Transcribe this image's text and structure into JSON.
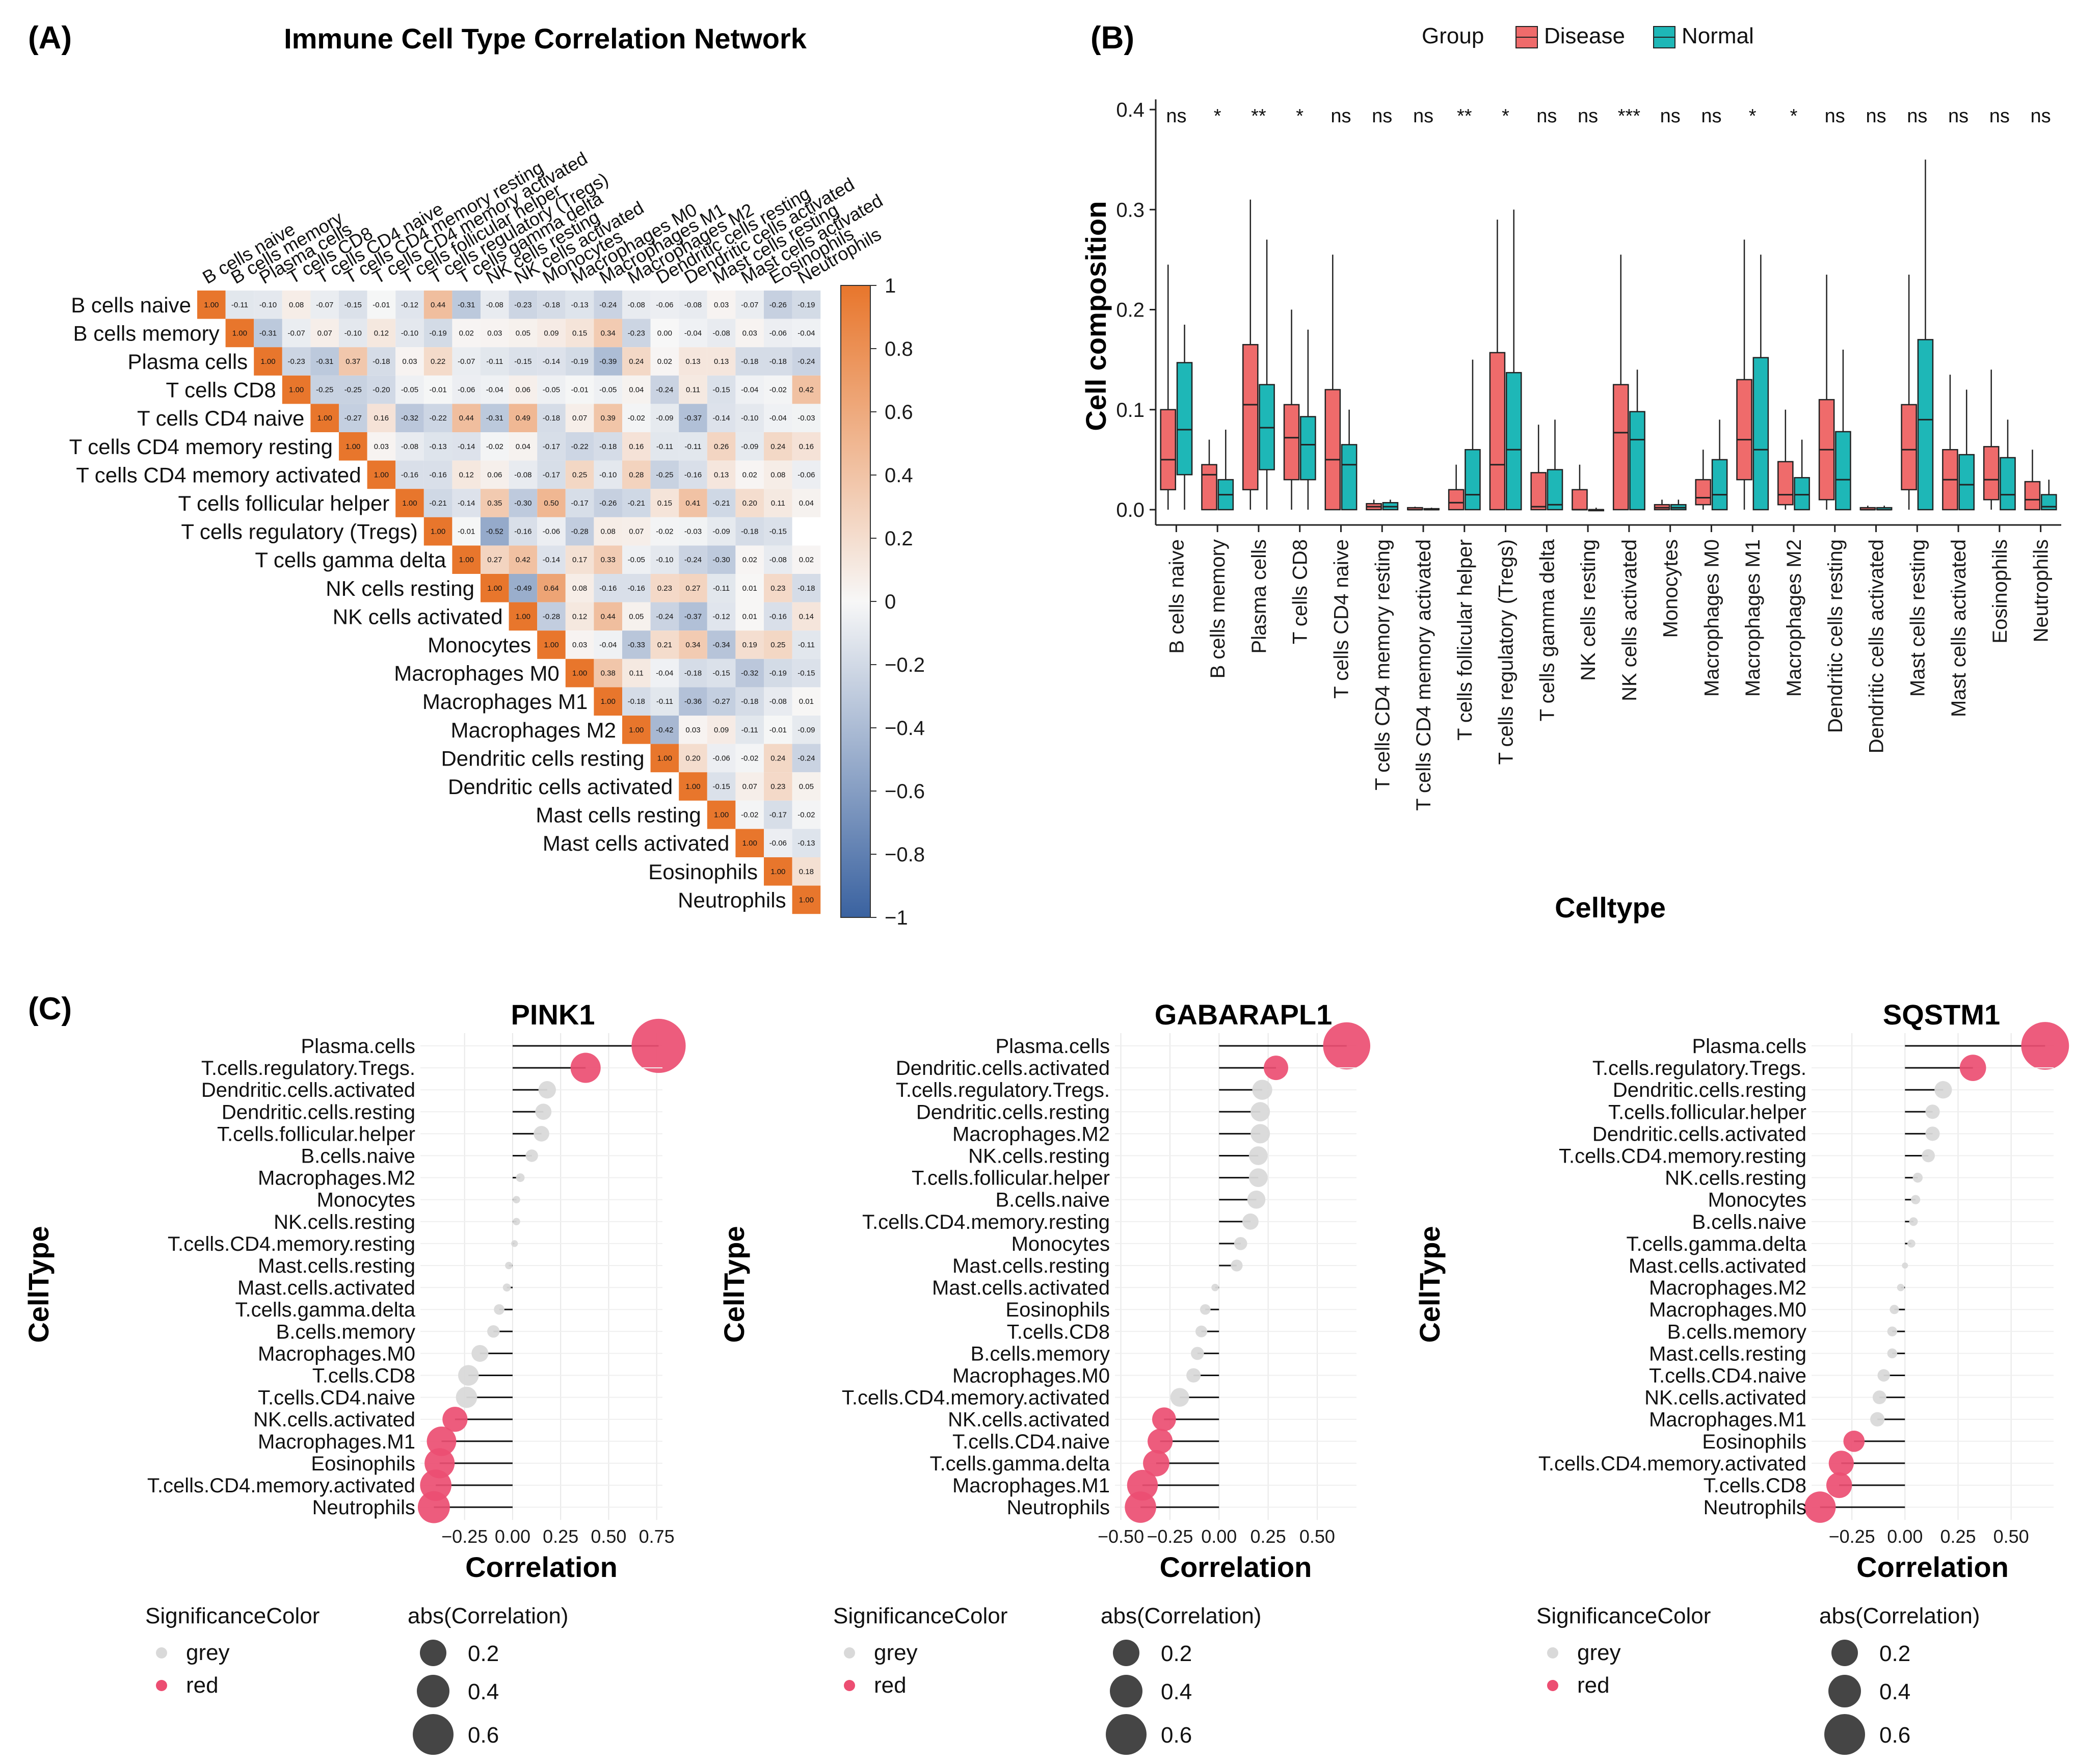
{
  "panels": {
    "a": {
      "label": "(A)",
      "title": "Immune Cell Type Correlation Network"
    },
    "b": {
      "label": "(B)"
    },
    "c": {
      "label": "(C)"
    }
  },
  "chart_data": [
    {
      "type": "heatmap",
      "title": "Immune Cell Type Correlation Network",
      "labels": [
        "B cells naive",
        "B cells memory",
        "Plasma cells",
        "T cells CD8",
        "T cells CD4 naive",
        "T cells CD4 memory resting",
        "T cells CD4 memory activated",
        "T cells follicular helper",
        "T cells regulatory (Tregs)",
        "T cells gamma delta",
        "NK cells resting",
        "NK cells activated",
        "Monocytes",
        "Macrophages M0",
        "Macrophages M1",
        "Macrophages M2",
        "Dendritic cells resting",
        "Dendritic cells activated",
        "Mast cells resting",
        "Mast cells activated",
        "Eosinophils",
        "Neutrophils"
      ],
      "values": [
        [
          1.0,
          -0.11,
          -0.1,
          0.08,
          -0.07,
          -0.15,
          -0.01,
          -0.12,
          0.44,
          -0.31,
          -0.08,
          -0.23,
          -0.18,
          -0.13,
          -0.24,
          -0.08,
          -0.06,
          -0.08,
          0.03,
          -0.07,
          -0.26,
          -0.19
        ],
        [
          1.0,
          -0.31,
          -0.07,
          0.07,
          -0.1,
          0.12,
          -0.1,
          -0.19,
          0.02,
          0.03,
          0.05,
          0.09,
          0.15,
          0.34,
          -0.23,
          0.0,
          -0.04,
          -0.08,
          0.03,
          -0.06,
          -0.04
        ],
        [
          1.0,
          -0.23,
          -0.31,
          0.37,
          -0.18,
          0.03,
          0.22,
          -0.07,
          -0.11,
          -0.15,
          -0.14,
          -0.19,
          -0.39,
          0.24,
          0.02,
          0.13,
          0.13,
          -0.18,
          -0.18,
          -0.24
        ],
        [
          1.0,
          -0.25,
          -0.25,
          -0.2,
          -0.05,
          -0.01,
          -0.06,
          -0.04,
          0.06,
          -0.05,
          -0.01,
          -0.05,
          0.04,
          -0.24,
          0.11,
          -0.15,
          -0.04,
          -0.02,
          0.42
        ],
        [
          1.0,
          -0.27,
          0.16,
          -0.32,
          -0.22,
          0.44,
          -0.31,
          0.49,
          -0.18,
          0.07,
          0.39,
          -0.02,
          -0.09,
          -0.37,
          -0.14,
          -0.1,
          -0.04,
          -0.03
        ],
        [
          1.0,
          0.03,
          -0.08,
          -0.13,
          -0.14,
          -0.02,
          0.04,
          -0.17,
          -0.22,
          -0.18,
          0.16,
          -0.11,
          -0.11,
          0.26,
          -0.09,
          0.24,
          0.16
        ],
        [
          1.0,
          -0.16,
          -0.16,
          0.12,
          0.06,
          -0.08,
          -0.17,
          0.25,
          -0.1,
          0.28,
          -0.25,
          -0.16,
          0.13,
          0.02,
          0.08,
          -0.06
        ],
        [
          1.0,
          -0.21,
          -0.14,
          0.35,
          -0.3,
          0.5,
          -0.17,
          -0.26,
          -0.21,
          0.15,
          0.41,
          -0.21,
          0.2,
          0.11,
          0.04
        ],
        [
          1.0,
          -0.01,
          -0.52,
          -0.16,
          -0.06,
          -0.28,
          0.08,
          0.07,
          -0.02,
          -0.03,
          -0.09,
          -0.18,
          -0.15
        ],
        [
          1.0,
          0.27,
          0.42,
          -0.14,
          0.17,
          0.33,
          -0.05,
          -0.1,
          -0.24,
          -0.3,
          0.02,
          -0.08,
          0.02
        ],
        [
          1.0,
          -0.49,
          0.64,
          0.08,
          -0.16,
          -0.16,
          0.23,
          0.27,
          -0.11,
          0.01,
          0.23,
          -0.18
        ],
        [
          1.0,
          -0.28,
          0.12,
          0.44,
          0.05,
          -0.24,
          -0.37,
          -0.12,
          0.01,
          -0.16,
          0.14
        ],
        [
          1.0,
          0.03,
          -0.04,
          -0.33,
          0.21,
          0.34,
          -0.34,
          0.19,
          0.25,
          -0.11
        ],
        [
          1.0,
          0.38,
          0.11,
          -0.04,
          -0.18,
          -0.15,
          -0.32,
          -0.19,
          -0.15
        ],
        [
          1.0,
          -0.18,
          -0.11,
          -0.36,
          -0.27,
          -0.18,
          -0.08,
          0.01
        ],
        [
          1.0,
          -0.42,
          0.03,
          0.09,
          -0.11,
          -0.01,
          -0.09
        ],
        [
          1.0,
          0.2,
          -0.06,
          -0.02,
          0.24,
          -0.24
        ],
        [
          1.0,
          -0.15,
          0.07,
          0.23,
          0.05
        ],
        [
          1.0,
          -0.02,
          -0.17,
          -0.02
        ],
        [
          1.0,
          -0.06,
          -0.13
        ],
        [
          1.0,
          0.18
        ],
        [
          1.0
        ]
      ],
      "colorbar": {
        "ticks": [
          "1",
          "0.8",
          "0.6",
          "0.4",
          "0.2",
          "0",
          "−0.2",
          "−0.4",
          "−0.6",
          "−0.8",
          "−1"
        ],
        "range": [
          -1,
          1
        ],
        "low_color": "#3a62a0",
        "mid_color": "#f7f7f7",
        "high_color": "#e8762c"
      }
    },
    {
      "type": "box",
      "ylabel": "Cell composition",
      "xlabel": "Celltype",
      "ylim": [
        0,
        0.4
      ],
      "yticks": [
        "0.0",
        "0.1",
        "0.2",
        "0.3",
        "0.4"
      ],
      "legend": {
        "title": "Group",
        "items": [
          {
            "name": "Disease",
            "color": "#ef6b6b"
          },
          {
            "name": "Normal",
            "color": "#1eb7b7"
          }
        ]
      },
      "categories": [
        "B cells naive",
        "B cells memory",
        "Plasma cells",
        "T cells CD8",
        "T cells CD4 naive",
        "T cells CD4 memory resting",
        "T cells CD4 memory activated",
        "T cells follicular helper",
        "T cells regulatory (Tregs)",
        "T cells gamma delta",
        "NK cells resting",
        "NK cells activated",
        "Monocytes",
        "Macrophages M0",
        "Macrophages M1",
        "Macrophages M2",
        "Dendritic cells resting",
        "Dendritic cells activated",
        "Mast cells resting",
        "Mast cells activated",
        "Eosinophils",
        "Neutrophils"
      ],
      "significance": [
        "ns",
        "*",
        "**",
        "*",
        "ns",
        "ns",
        "ns",
        "**",
        "*",
        "ns",
        "ns",
        "***",
        "ns",
        "ns",
        "*",
        "*",
        "ns",
        "ns",
        "ns",
        "ns",
        "ns",
        "ns"
      ],
      "disease": [
        {
          "q1": 0.02,
          "med": 0.05,
          "q3": 0.1,
          "lo": 0,
          "hi": 0.245
        },
        {
          "q1": 0.0,
          "med": 0.035,
          "q3": 0.045,
          "lo": 0,
          "hi": 0.07
        },
        {
          "q1": 0.02,
          "med": 0.105,
          "q3": 0.165,
          "lo": 0,
          "hi": 0.31
        },
        {
          "q1": 0.03,
          "med": 0.072,
          "q3": 0.105,
          "lo": 0,
          "hi": 0.2
        },
        {
          "q1": 0.0,
          "med": 0.05,
          "q3": 0.12,
          "lo": 0,
          "hi": 0.255
        },
        {
          "q1": 0.0,
          "med": 0.003,
          "q3": 0.006,
          "lo": 0,
          "hi": 0.01
        },
        {
          "q1": 0.0,
          "med": 0.0,
          "q3": 0.002,
          "lo": 0,
          "hi": 0.003
        },
        {
          "q1": 0.0,
          "med": 0.007,
          "q3": 0.02,
          "lo": 0,
          "hi": 0.045
        },
        {
          "q1": 0.0,
          "med": 0.045,
          "q3": 0.157,
          "lo": 0,
          "hi": 0.29
        },
        {
          "q1": 0.0,
          "med": 0.003,
          "q3": 0.037,
          "lo": 0,
          "hi": 0.085
        },
        {
          "q1": 0.0,
          "med": 0.0,
          "q3": 0.02,
          "lo": 0,
          "hi": 0.045
        },
        {
          "q1": 0.0,
          "med": 0.077,
          "q3": 0.125,
          "lo": 0,
          "hi": 0.255
        },
        {
          "q1": 0.0,
          "med": 0.002,
          "q3": 0.005,
          "lo": 0,
          "hi": 0.01
        },
        {
          "q1": 0.005,
          "med": 0.012,
          "q3": 0.03,
          "lo": 0,
          "hi": 0.06
        },
        {
          "q1": 0.03,
          "med": 0.07,
          "q3": 0.13,
          "lo": 0,
          "hi": 0.27
        },
        {
          "q1": 0.005,
          "med": 0.015,
          "q3": 0.048,
          "lo": 0,
          "hi": 0.1
        },
        {
          "q1": 0.01,
          "med": 0.06,
          "q3": 0.11,
          "lo": 0,
          "hi": 0.235
        },
        {
          "q1": 0.0,
          "med": 0.0,
          "q3": 0.002,
          "lo": 0,
          "hi": 0.004
        },
        {
          "q1": 0.02,
          "med": 0.06,
          "q3": 0.105,
          "lo": 0,
          "hi": 0.235
        },
        {
          "q1": 0.0,
          "med": 0.03,
          "q3": 0.06,
          "lo": 0,
          "hi": 0.135
        },
        {
          "q1": 0.01,
          "med": 0.03,
          "q3": 0.063,
          "lo": 0,
          "hi": 0.14
        },
        {
          "q1": 0.0,
          "med": 0.01,
          "q3": 0.028,
          "lo": 0,
          "hi": 0.06
        }
      ],
      "normal": [
        {
          "q1": 0.035,
          "med": 0.08,
          "q3": 0.147,
          "lo": 0,
          "hi": 0.185
        },
        {
          "q1": 0.0,
          "med": 0.015,
          "q3": 0.03,
          "lo": 0,
          "hi": 0.08
        },
        {
          "q1": 0.04,
          "med": 0.082,
          "q3": 0.125,
          "lo": 0,
          "hi": 0.27
        },
        {
          "q1": 0.03,
          "med": 0.065,
          "q3": 0.093,
          "lo": 0,
          "hi": 0.18
        },
        {
          "q1": 0.0,
          "med": 0.045,
          "q3": 0.065,
          "lo": 0,
          "hi": 0.1
        },
        {
          "q1": 0.0,
          "med": 0.003,
          "q3": 0.007,
          "lo": 0,
          "hi": 0.01
        },
        {
          "q1": 0.0,
          "med": 0.0,
          "q3": 0.001,
          "lo": 0,
          "hi": 0.002
        },
        {
          "q1": 0.0,
          "med": 0.015,
          "q3": 0.06,
          "lo": 0,
          "hi": 0.15
        },
        {
          "q1": 0.0,
          "med": 0.06,
          "q3": 0.137,
          "lo": 0,
          "hi": 0.3
        },
        {
          "q1": 0.0,
          "med": 0.005,
          "q3": 0.04,
          "lo": 0,
          "hi": 0.09
        },
        {
          "q1": 0.0,
          "med": 0.0,
          "q3": 0.0,
          "lo": 0,
          "hi": 0.002
        },
        {
          "q1": 0.0,
          "med": 0.07,
          "q3": 0.098,
          "lo": 0,
          "hi": 0.14
        },
        {
          "q1": 0.0,
          "med": 0.002,
          "q3": 0.005,
          "lo": 0,
          "hi": 0.01
        },
        {
          "q1": 0.0,
          "med": 0.015,
          "q3": 0.05,
          "lo": 0,
          "hi": 0.09
        },
        {
          "q1": 0.0,
          "med": 0.06,
          "q3": 0.152,
          "lo": 0,
          "hi": 0.255
        },
        {
          "q1": 0.0,
          "med": 0.015,
          "q3": 0.032,
          "lo": 0,
          "hi": 0.07
        },
        {
          "q1": 0.0,
          "med": 0.03,
          "q3": 0.078,
          "lo": 0,
          "hi": 0.16
        },
        {
          "q1": 0.0,
          "med": 0.0,
          "q3": 0.002,
          "lo": 0,
          "hi": 0.004
        },
        {
          "q1": 0.0,
          "med": 0.09,
          "q3": 0.17,
          "lo": 0,
          "hi": 0.35
        },
        {
          "q1": 0.0,
          "med": 0.025,
          "q3": 0.055,
          "lo": 0,
          "hi": 0.12
        },
        {
          "q1": 0.0,
          "med": 0.015,
          "q3": 0.052,
          "lo": 0,
          "hi": 0.09
        },
        {
          "q1": 0.0,
          "med": 0.003,
          "q3": 0.015,
          "lo": 0,
          "hi": 0.03
        }
      ]
    },
    {
      "type": "lollipop",
      "title": "PINK1",
      "ylabel": "CellType",
      "xlabel": "Correlation",
      "xlim": [
        -0.48,
        0.78
      ],
      "xticks": [
        -0.25,
        0.0,
        0.25,
        0.5,
        0.75
      ],
      "xtick_labels": [
        "−0.25",
        "0.00",
        "0.25",
        "0.50",
        "0.75"
      ],
      "cells": [
        "Plasma.cells",
        "T.cells.regulatory.Tregs.",
        "Dendritic.cells.activated",
        "Dendritic.cells.resting",
        "T.cells.follicular.helper",
        "B.cells.naive",
        "Macrophages.M2",
        "Monocytes",
        "NK.cells.resting",
        "T.cells.CD4.memory.resting",
        "Mast.cells.resting",
        "Mast.cells.activated",
        "T.cells.gamma.delta",
        "B.cells.memory",
        "Macrophages.M0",
        "T.cells.CD8",
        "T.cells.CD4.naive",
        "NK.cells.activated",
        "Macrophages.M1",
        "Eosinophils",
        "T.cells.CD4.memory.activated",
        "Neutrophils"
      ],
      "correlations": [
        0.76,
        0.38,
        0.18,
        0.16,
        0.15,
        0.1,
        0.04,
        0.02,
        0.02,
        0.01,
        -0.02,
        -0.03,
        -0.07,
        -0.1,
        -0.17,
        -0.23,
        -0.24,
        -0.3,
        -0.37,
        -0.38,
        -0.4,
        -0.41
      ],
      "significance": [
        "red",
        "red",
        "grey",
        "grey",
        "grey",
        "grey",
        "grey",
        "grey",
        "grey",
        "grey",
        "grey",
        "grey",
        "grey",
        "grey",
        "grey",
        "grey",
        "grey",
        "red",
        "red",
        "red",
        "red",
        "red"
      ]
    },
    {
      "type": "lollipop",
      "title": "GABARAPL1",
      "ylabel": "CellType",
      "xlabel": "Correlation",
      "xlim": [
        -0.53,
        0.7
      ],
      "xticks": [
        -0.5,
        -0.25,
        0.0,
        0.25,
        0.5
      ],
      "xtick_labels": [
        "−0.50",
        "−0.25",
        "0.00",
        "0.25",
        "0.50"
      ],
      "cells": [
        "Plasma.cells",
        "Dendritic.cells.activated",
        "T.cells.regulatory.Tregs.",
        "Dendritic.cells.resting",
        "Macrophages.M2",
        "NK.cells.resting",
        "T.cells.follicular.helper",
        "B.cells.naive",
        "T.cells.CD4.memory.resting",
        "Monocytes",
        "Mast.cells.resting",
        "Mast.cells.activated",
        "Eosinophils",
        "T.cells.CD8",
        "B.cells.memory",
        "Macrophages.M0",
        "T.cells.CD4.memory.activated",
        "NK.cells.activated",
        "T.cells.CD4.naive",
        "T.cells.gamma.delta",
        "Macrophages.M1",
        "Neutrophils"
      ],
      "correlations": [
        0.65,
        0.29,
        0.22,
        0.21,
        0.21,
        0.2,
        0.2,
        0.19,
        0.16,
        0.11,
        0.09,
        -0.02,
        -0.07,
        -0.09,
        -0.11,
        -0.13,
        -0.2,
        -0.28,
        -0.3,
        -0.32,
        -0.39,
        -0.4
      ],
      "significance": [
        "red",
        "red",
        "grey",
        "grey",
        "grey",
        "grey",
        "grey",
        "grey",
        "grey",
        "grey",
        "grey",
        "grey",
        "grey",
        "grey",
        "grey",
        "grey",
        "grey",
        "red",
        "red",
        "red",
        "red",
        "red"
      ]
    },
    {
      "type": "lollipop",
      "title": "SQSTM1",
      "ylabel": "CellType",
      "xlabel": "Correlation",
      "xlim": [
        -0.44,
        0.7
      ],
      "xticks": [
        -0.25,
        0.0,
        0.25,
        0.5
      ],
      "xtick_labels": [
        "−0.25",
        "0.00",
        "0.25",
        "0.50"
      ],
      "cells": [
        "Plasma.cells",
        "T.cells.regulatory.Tregs.",
        "Dendritic.cells.resting",
        "T.cells.follicular.helper",
        "Dendritic.cells.activated",
        "T.cells.CD4.memory.resting",
        "NK.cells.resting",
        "Monocytes",
        "B.cells.naive",
        "T.cells.gamma.delta",
        "Mast.cells.activated",
        "Macrophages.M2",
        "Macrophages.M0",
        "B.cells.memory",
        "Mast.cells.resting",
        "T.cells.CD4.naive",
        "NK.cells.activated",
        "Macrophages.M1",
        "Eosinophils",
        "T.cells.CD4.memory.activated",
        "T.cells.CD8",
        "Neutrophils"
      ],
      "correlations": [
        0.66,
        0.32,
        0.18,
        0.13,
        0.13,
        0.11,
        0.06,
        0.05,
        0.04,
        0.03,
        0.0,
        -0.02,
        -0.05,
        -0.06,
        -0.06,
        -0.1,
        -0.12,
        -0.13,
        -0.24,
        -0.3,
        -0.31,
        -0.4
      ],
      "significance": [
        "red",
        "red",
        "grey",
        "grey",
        "grey",
        "grey",
        "grey",
        "grey",
        "grey",
        "grey",
        "grey",
        "grey",
        "grey",
        "grey",
        "grey",
        "grey",
        "grey",
        "grey",
        "red",
        "red",
        "red",
        "red"
      ]
    }
  ],
  "legend_c": {
    "sig_title": "SignificanceColor",
    "grey_label": "grey",
    "red_label": "red",
    "size_title": "abs(Correlation)",
    "size_vals": [
      "0.2",
      "0.4",
      "0.6"
    ],
    "grey_color": "#d9d9d9",
    "red_color": "#ec4e72"
  }
}
